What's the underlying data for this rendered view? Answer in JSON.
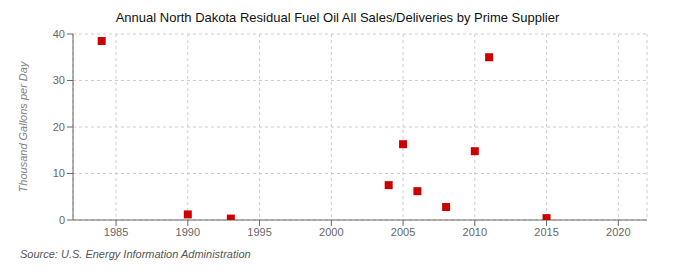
{
  "chart_data": {
    "type": "scatter",
    "title": "Annual North Dakota Residual Fuel Oil All Sales/Deliveries by Prime Supplier",
    "ylabel": "Thousand Gallons per Day",
    "source": "Source: U.S. Energy Information Administration",
    "x": [
      1984,
      1990,
      1993,
      2004,
      2005,
      2006,
      2008,
      2010,
      2011,
      2015
    ],
    "values": [
      38.5,
      1.2,
      0.3,
      7.5,
      16.3,
      6.2,
      2.8,
      14.8,
      35.0,
      0.4
    ],
    "color": "#cc0000",
    "marker": "square",
    "xlim": [
      1982,
      2022
    ],
    "ylim": [
      0,
      40
    ],
    "xticks": [
      1985,
      1990,
      1995,
      2000,
      2005,
      2010,
      2015,
      2020
    ],
    "yticks": [
      0,
      10,
      20,
      30,
      40
    ],
    "grid": true
  }
}
